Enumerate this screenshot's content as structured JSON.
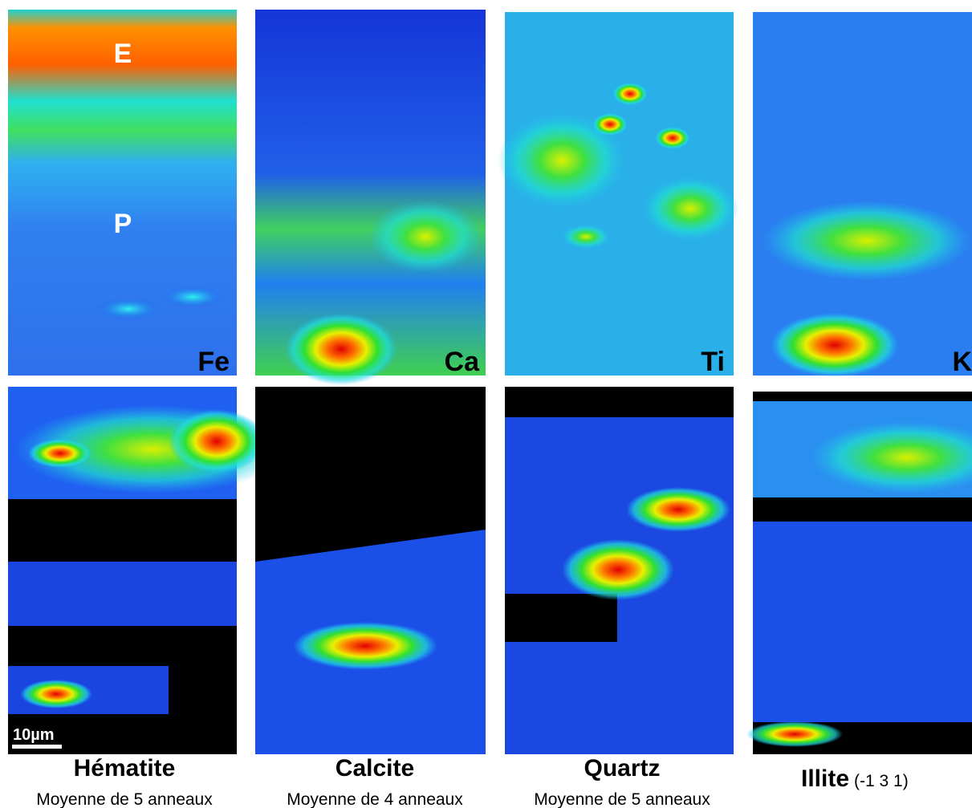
{
  "panels": [
    {
      "element": "Fe",
      "labels": [
        "E",
        "P"
      ]
    },
    {
      "element": "Ca"
    },
    {
      "element": "Ti"
    },
    {
      "element": "K"
    }
  ],
  "scale_bar": "10µm",
  "minerals": [
    {
      "name": "Hématite",
      "note": "Moyenne de 5 anneaux"
    },
    {
      "name": "Calcite",
      "note": "Moyenne de 4 anneaux"
    },
    {
      "name": "Quartz",
      "note": "Moyenne de 5 anneaux"
    },
    {
      "name": "Illite",
      "indices": "(-1 3 1)"
    }
  ]
}
